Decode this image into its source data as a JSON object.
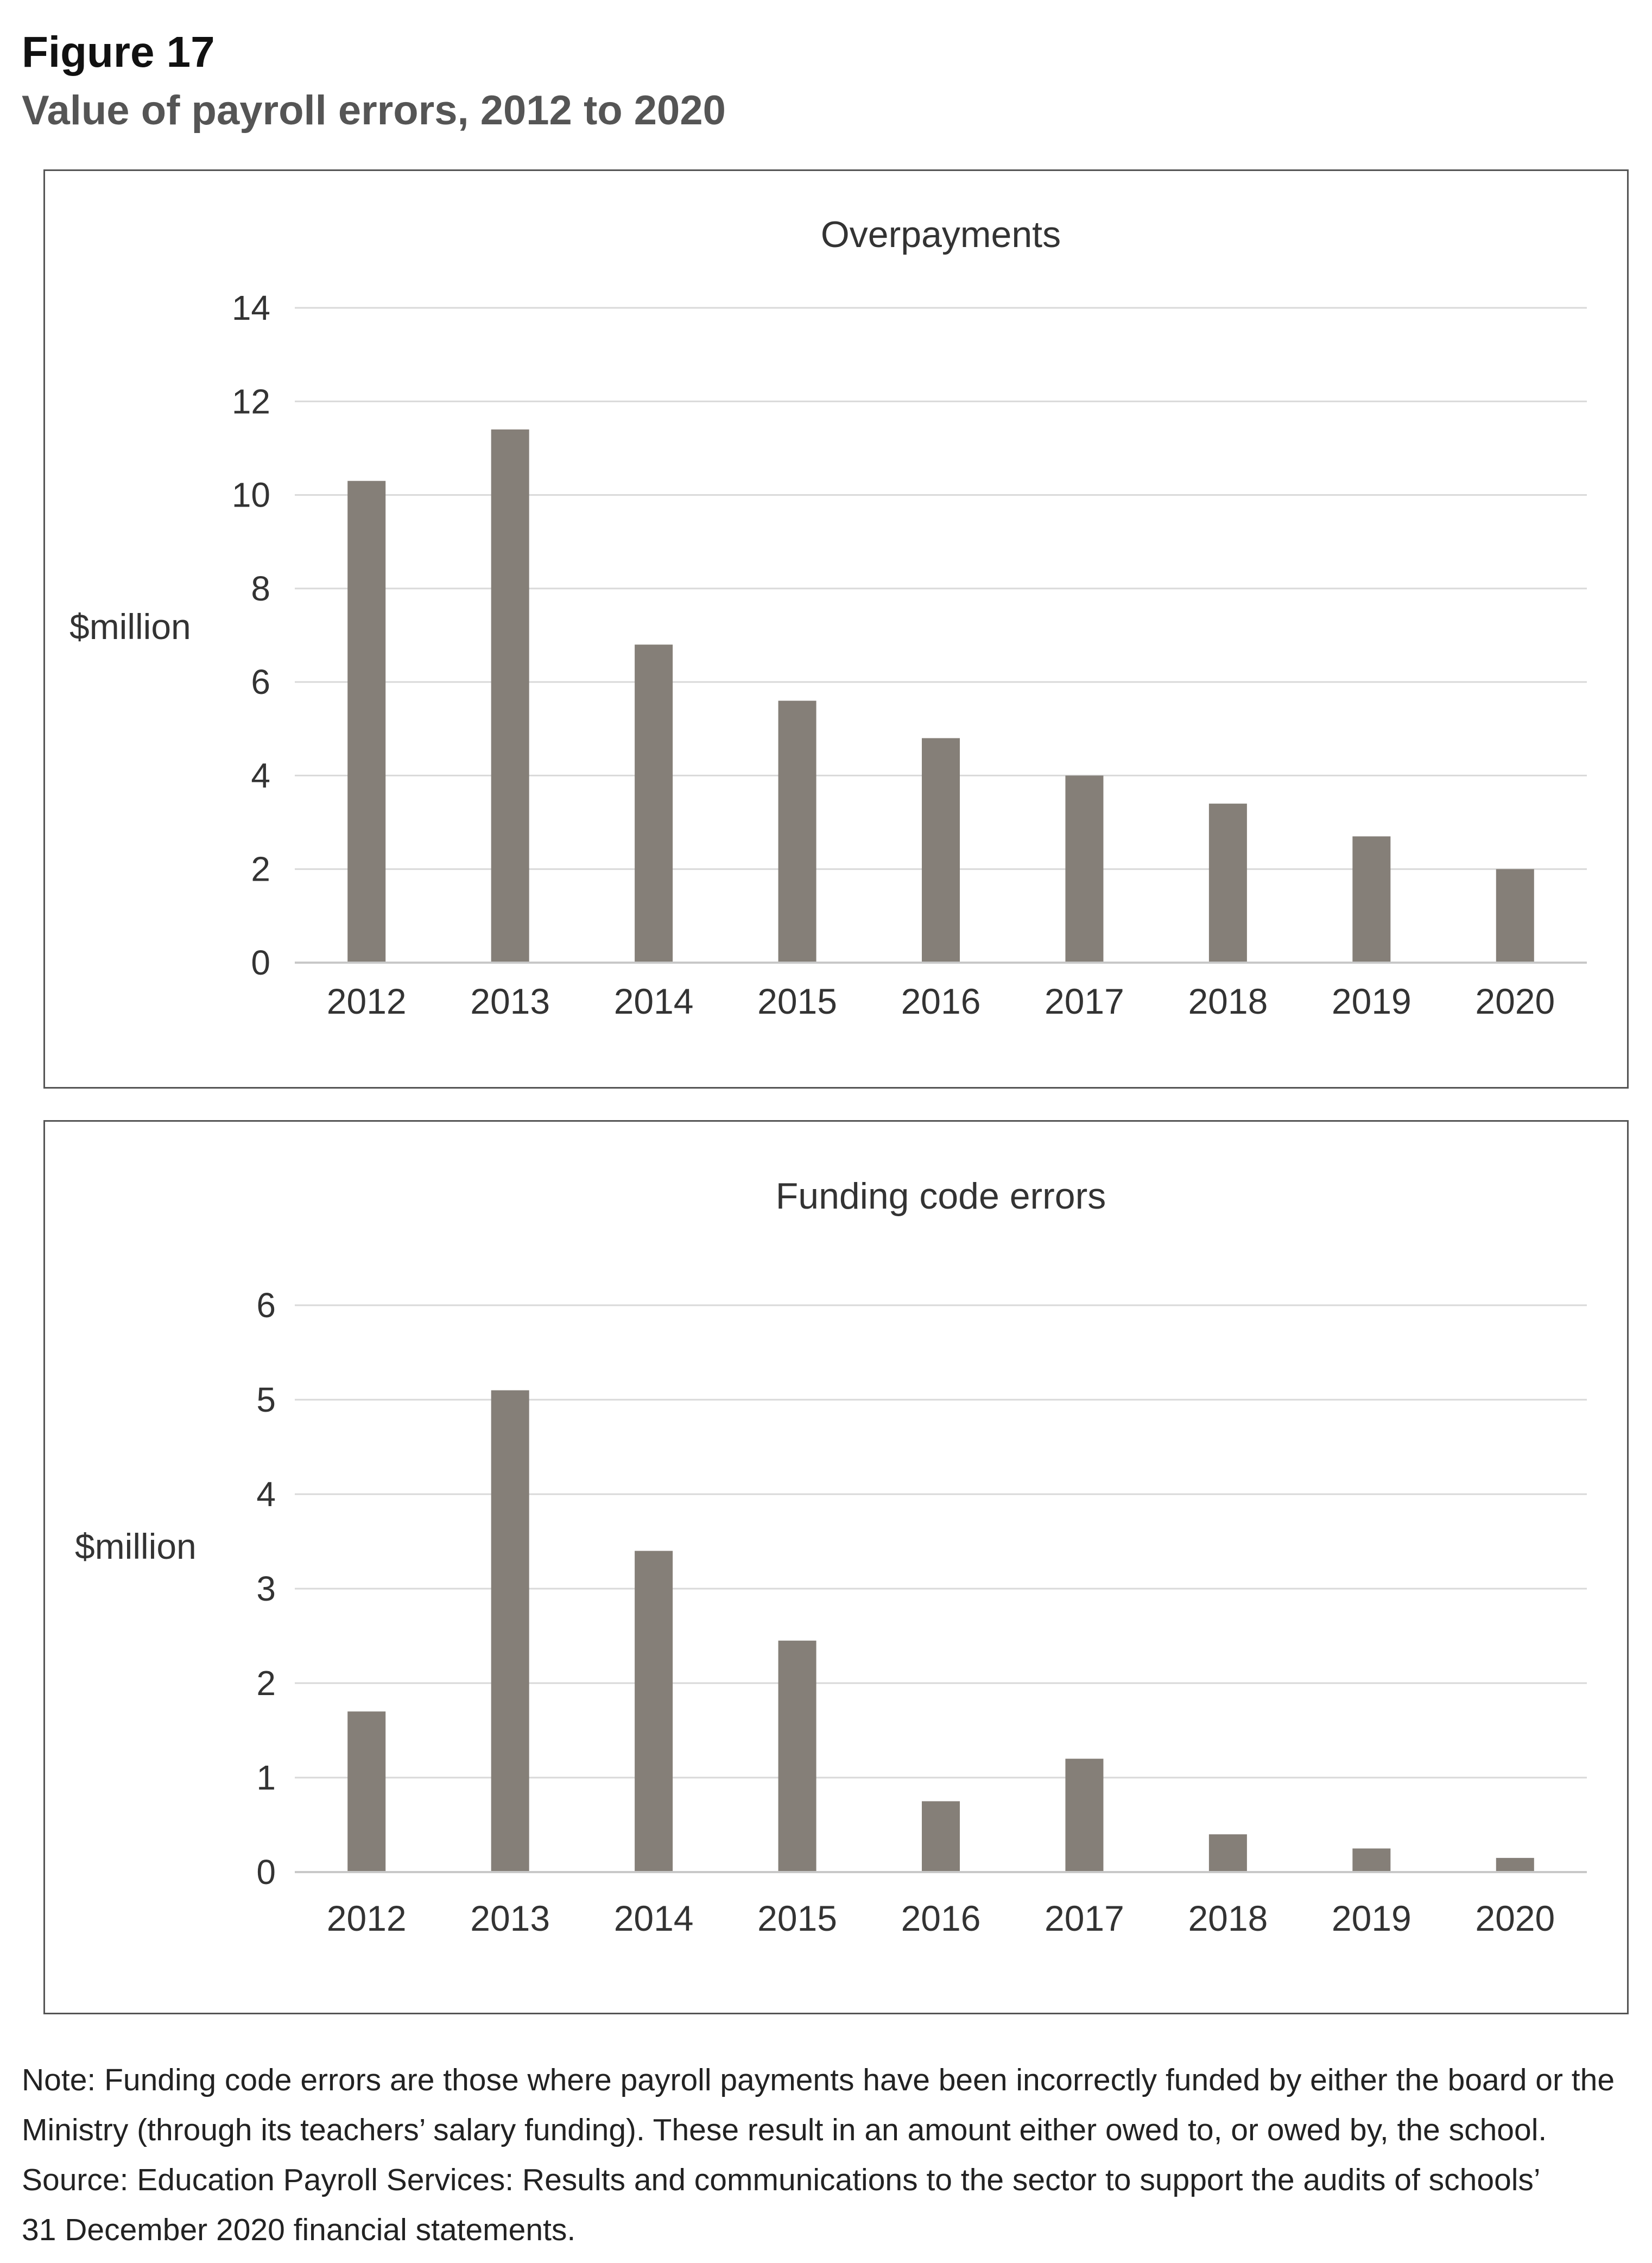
{
  "figure": {
    "label": "Figure 17",
    "title": "Value of payroll errors, 2012 to 2020"
  },
  "chart_data": [
    {
      "type": "bar",
      "title": "Overpayments",
      "ylabel": "$million",
      "xlabel": "",
      "categories": [
        "2012",
        "2013",
        "2014",
        "2015",
        "2016",
        "2017",
        "2018",
        "2019",
        "2020"
      ],
      "values": [
        10.3,
        11.4,
        6.8,
        5.6,
        4.8,
        4.0,
        3.4,
        2.7,
        2.0
      ],
      "ylim": [
        0,
        14
      ],
      "yticks": [
        0,
        2,
        4,
        6,
        8,
        10,
        12,
        14
      ],
      "grid": true,
      "bar_color": "#857f78",
      "grid_color": "#d9d9d9"
    },
    {
      "type": "bar",
      "title": "Funding code errors",
      "ylabel": "$million",
      "xlabel": "",
      "categories": [
        "2012",
        "2013",
        "2014",
        "2015",
        "2016",
        "2017",
        "2018",
        "2019",
        "2020"
      ],
      "values": [
        1.7,
        5.1,
        3.4,
        2.45,
        0.75,
        1.2,
        0.4,
        0.25,
        0.15
      ],
      "ylim": [
        0,
        6
      ],
      "yticks": [
        0,
        1,
        2,
        3,
        4,
        5,
        6
      ],
      "grid": true,
      "bar_color": "#857f78",
      "grid_color": "#d9d9d9"
    }
  ],
  "notes": {
    "note": "Note: Funding code errors are those where payroll payments have been incorrectly funded by either the board or the Ministry (through its teachers’ salary funding). These result in an amount either owed to, or owed by, the school.",
    "source_line1": "Source: Education Payroll Services: Results and communications to the sector to support the audits of schools’",
    "source_line2": "31 December 2020 financial statements."
  }
}
